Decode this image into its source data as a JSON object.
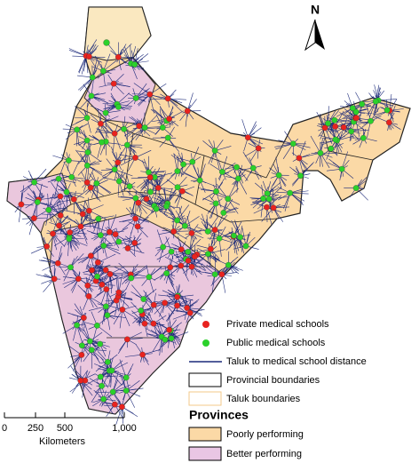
{
  "north_arrow": "N",
  "legend": {
    "items": [
      "Private medical schools",
      "Public medical schools",
      "Taluk to medical school distance",
      "Provincial boundaries",
      "Taluk boundaries"
    ],
    "provinces_title": "Provinces",
    "provinces": [
      "Poorly performing",
      "Better performing"
    ]
  },
  "scale_bar": {
    "ticks": [
      "0",
      "250",
      "500",
      "1,000"
    ],
    "unit": "Kilometers"
  }
}
